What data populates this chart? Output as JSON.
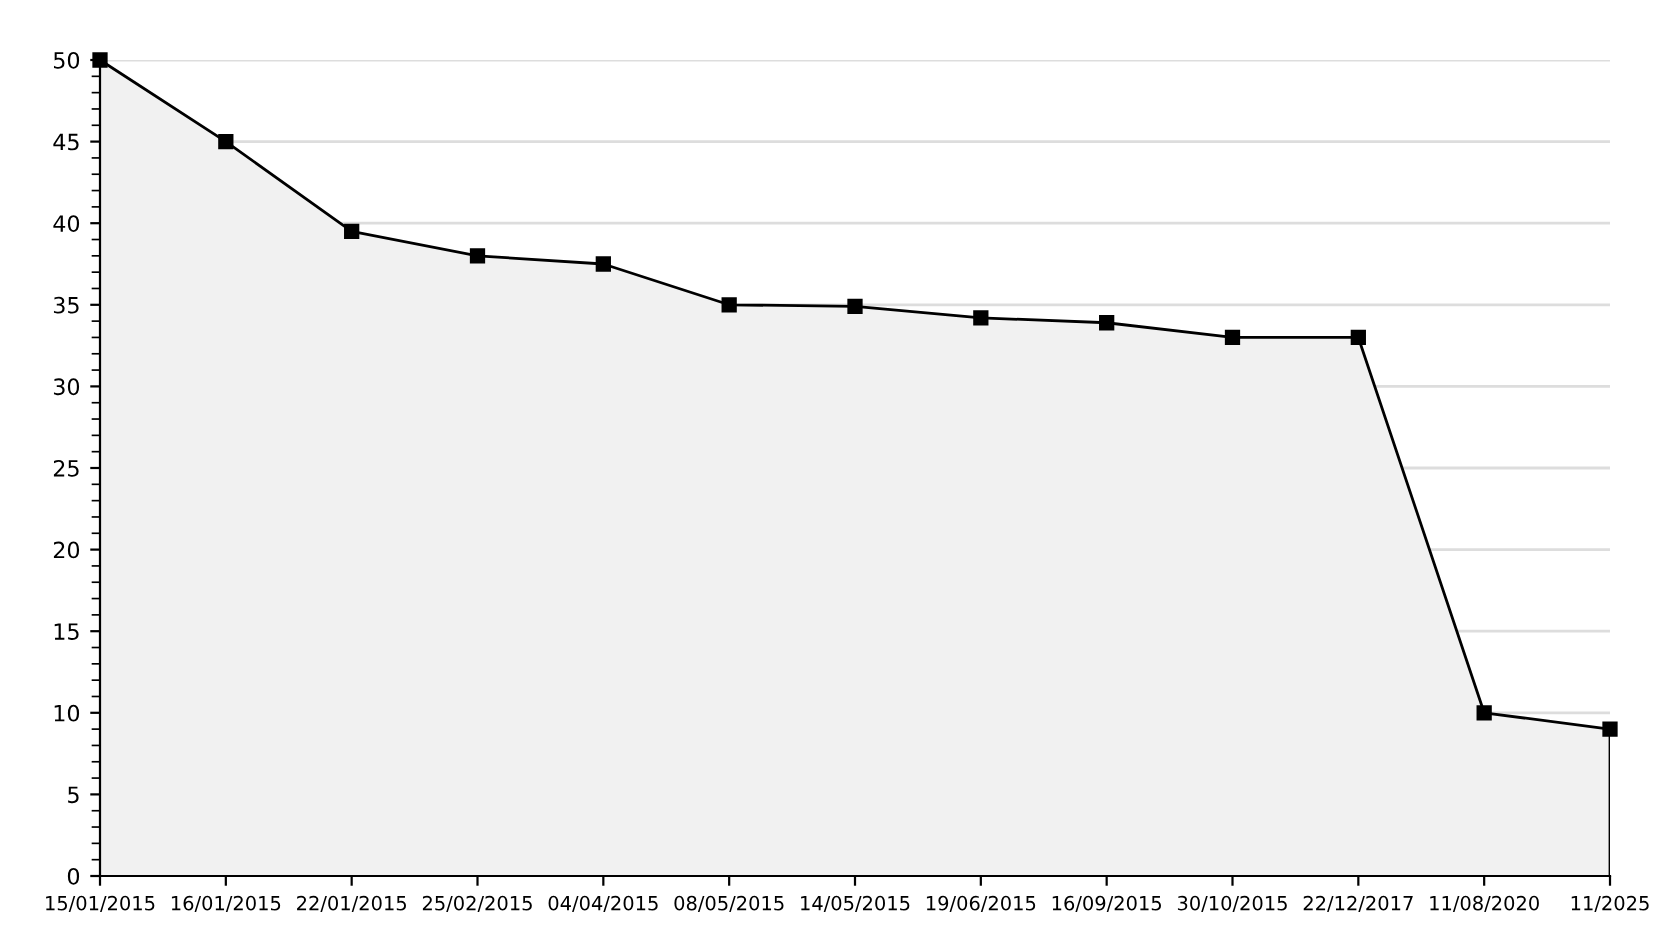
{
  "chart_data": {
    "type": "area",
    "categories": [
      "15/01/2015",
      "16/01/2015",
      "22/01/2015",
      "25/02/2015",
      "04/04/2015",
      "08/05/2015",
      "14/05/2015",
      "19/06/2015",
      "16/09/2015",
      "30/10/2015",
      "22/12/2017",
      "11/08/2020",
      "11/2025"
    ],
    "series": [
      {
        "color": "#000000",
        "values": [
          50,
          45,
          39.5,
          38,
          37.5,
          35,
          34.9,
          34.2,
          33.9,
          33,
          33,
          10,
          9
        ]
      }
    ],
    "ylim": [
      0,
      50
    ],
    "yticks": [
      0,
      5,
      10,
      15,
      20,
      25,
      30,
      35,
      40,
      45,
      50
    ],
    "grid": "y",
    "marker": "square",
    "line_style": "solid",
    "legend": false
  }
}
